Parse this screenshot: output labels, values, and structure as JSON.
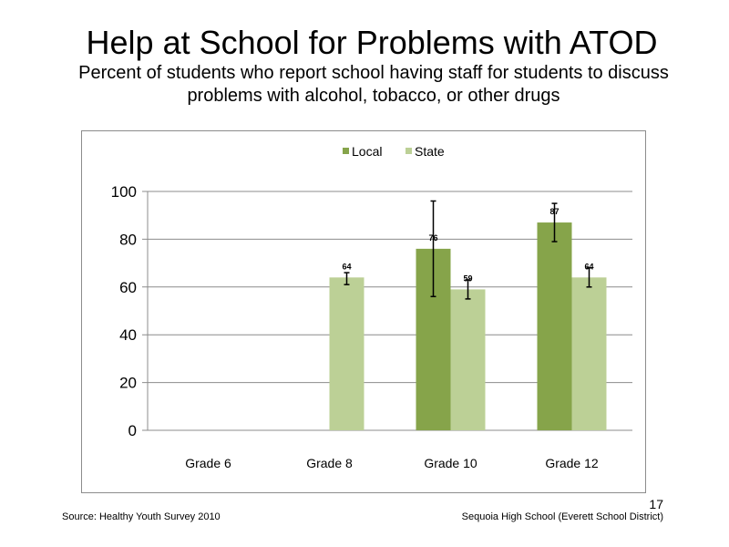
{
  "slide": {
    "title": "Help at School for Problems with ATOD",
    "subtitle": "Percent of students who report school having staff for students to discuss problems with alcohol, tobacco, or other drugs",
    "source": "Source: Healthy Youth Survey 2010",
    "school": "Sequoia High School (Everett School District)",
    "page_number": "17"
  },
  "chart_data": {
    "type": "bar",
    "categories": [
      "Grade 6",
      "Grade 8",
      "Grade 10",
      "Grade 12"
    ],
    "series": [
      {
        "name": "Local",
        "color": "#86a44a",
        "values": [
          null,
          null,
          76,
          87
        ],
        "error_low": [
          null,
          null,
          56,
          79
        ],
        "error_high": [
          null,
          null,
          96,
          95
        ],
        "labels": [
          "",
          "",
          "76",
          "87"
        ]
      },
      {
        "name": "State",
        "color": "#bcd096",
        "values": [
          null,
          64,
          59,
          64
        ],
        "error_low": [
          null,
          61,
          55,
          60
        ],
        "error_high": [
          null,
          66,
          63,
          68
        ],
        "labels": [
          "",
          "64",
          "59",
          "64"
        ]
      }
    ],
    "ylim": [
      0,
      100
    ],
    "yticks": [
      0,
      20,
      40,
      60,
      80,
      100
    ],
    "ytick_labels": [
      "0",
      "20",
      "40",
      "60",
      "80",
      "100"
    ],
    "grid": true,
    "legend_position": "top"
  }
}
